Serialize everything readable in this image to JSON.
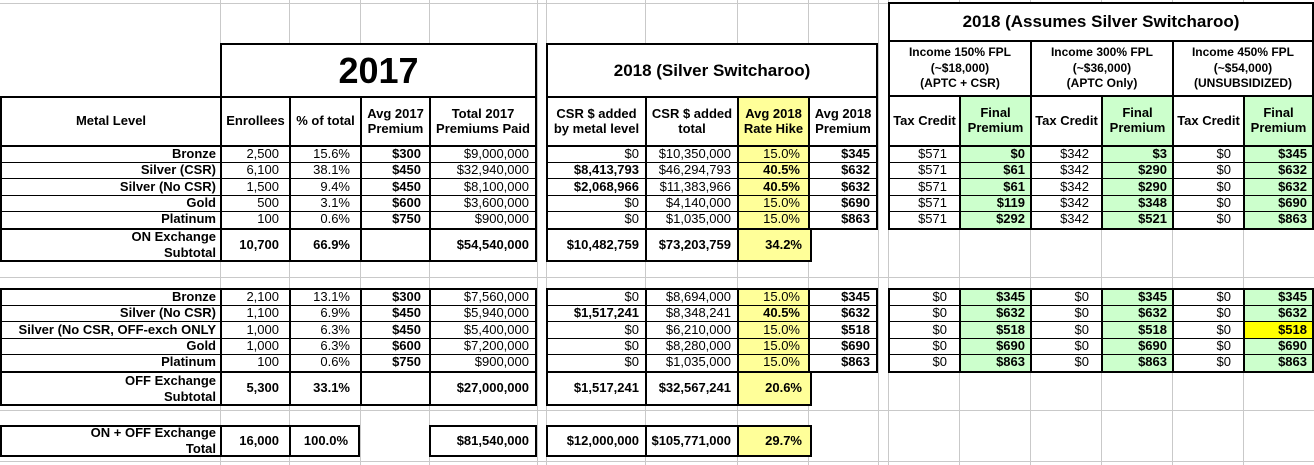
{
  "titles": {
    "y2017": "2017",
    "switcharoo": "2018 (Silver Switcharoo)",
    "assumes": "2018 (Assumes Silver Switcharoo)"
  },
  "headers": {
    "left": [
      "Metal Level",
      "Enrollees",
      "% of total",
      "Avg 2017 Premium",
      "Total 2017 Premiums Paid"
    ],
    "mid": [
      "CSR $ added by metal level",
      "CSR $ added total",
      "Avg 2018 Rate Hike",
      "Avg 2018 Premium"
    ],
    "income": [
      "Income 150% FPL\n(~$18,000)\n(APTC + CSR)",
      "Income 300% FPL\n(~$36,000)\n(APTC Only)",
      "Income 450% FPL\n(~$54,000)\n(UNSUBSIDIZED)"
    ],
    "tax_credit": "Tax Credit",
    "final_premium": "Final Premium"
  },
  "colors": {
    "rate_hike_highlight": "#FFFF99",
    "final_premium_highlight": "#CCFFCC",
    "special_cell_highlight": "#FFFF00"
  },
  "on_rows": [
    {
      "label": "Bronze",
      "enrollees": "2,500",
      "pct": "15.6%",
      "avg2017": "$300",
      "total2017": "$9,000,000",
      "csr_added": "$0",
      "csr_total": "$10,350,000",
      "hike": "15.0%",
      "avg2018": "$345",
      "tc150": "$571",
      "fp150": "$0",
      "tc300": "$342",
      "fp300": "$3",
      "tc450": "$0",
      "fp450": "$345"
    },
    {
      "label": "Silver (CSR)",
      "enrollees": "6,100",
      "pct": "38.1%",
      "avg2017": "$450",
      "total2017": "$32,940,000",
      "csr_added": "$8,413,793",
      "csr_added_bold": true,
      "csr_total": "$46,294,793",
      "hike": "40.5%",
      "hike_bold": true,
      "avg2018": "$632",
      "tc150": "$571",
      "fp150": "$61",
      "tc300": "$342",
      "fp300": "$290",
      "tc450": "$0",
      "fp450": "$632"
    },
    {
      "label": "Silver (No CSR)",
      "enrollees": "1,500",
      "pct": "9.4%",
      "avg2017": "$450",
      "total2017": "$8,100,000",
      "csr_added": "$2,068,966",
      "csr_added_bold": true,
      "csr_total": "$11,383,966",
      "hike": "40.5%",
      "hike_bold": true,
      "avg2018": "$632",
      "tc150": "$571",
      "fp150": "$61",
      "tc300": "$342",
      "fp300": "$290",
      "tc450": "$0",
      "fp450": "$632"
    },
    {
      "label": "Gold",
      "enrollees": "500",
      "pct": "3.1%",
      "avg2017": "$600",
      "total2017": "$3,600,000",
      "csr_added": "$0",
      "csr_total": "$4,140,000",
      "hike": "15.0%",
      "avg2018": "$690",
      "tc150": "$571",
      "fp150": "$119",
      "tc300": "$342",
      "fp300": "$348",
      "tc450": "$0",
      "fp450": "$690"
    },
    {
      "label": "Platinum",
      "enrollees": "100",
      "pct": "0.6%",
      "avg2017": "$750",
      "total2017": "$900,000",
      "csr_added": "$0",
      "csr_total": "$1,035,000",
      "hike": "15.0%",
      "avg2018": "$863",
      "tc150": "$571",
      "fp150": "$292",
      "tc300": "$342",
      "fp300": "$521",
      "tc450": "$0",
      "fp450": "$863"
    }
  ],
  "on_subtotal": {
    "label": "ON Exchange\nSubtotal",
    "enrollees": "10,700",
    "pct": "66.9%",
    "avg2017": "",
    "total2017": "$54,540,000",
    "csr_added": "$10,482,759",
    "csr_total": "$73,203,759",
    "hike": "34.2%"
  },
  "off_rows": [
    {
      "label": "Bronze",
      "enrollees": "2,100",
      "pct": "13.1%",
      "avg2017": "$300",
      "total2017": "$7,560,000",
      "csr_added": "$0",
      "csr_total": "$8,694,000",
      "hike": "15.0%",
      "avg2018": "$345",
      "tc150": "$0",
      "fp150": "$345",
      "tc300": "$0",
      "fp300": "$345",
      "tc450": "$0",
      "fp450": "$345"
    },
    {
      "label": "Silver (No CSR)",
      "enrollees": "1,100",
      "pct": "6.9%",
      "avg2017": "$450",
      "total2017": "$5,940,000",
      "csr_added": "$1,517,241",
      "csr_added_bold": true,
      "csr_total": "$8,348,241",
      "hike": "40.5%",
      "hike_bold": true,
      "avg2018": "$632",
      "tc150": "$0",
      "fp150": "$632",
      "tc300": "$0",
      "fp300": "$632",
      "tc450": "$0",
      "fp450": "$632"
    },
    {
      "label": "Silver (No CSR, OFF-exch ONLY",
      "enrollees": "1,000",
      "pct": "6.3%",
      "avg2017": "$450",
      "total2017": "$5,400,000",
      "csr_added": "$0",
      "csr_total": "$6,210,000",
      "hike": "15.0%",
      "avg2018": "$518",
      "tc150": "$0",
      "fp150": "$518",
      "tc300": "$0",
      "fp300": "$518",
      "tc450": "$0",
      "fp450": "$518",
      "fp450_highlight": true
    },
    {
      "label": "Gold",
      "enrollees": "1,000",
      "pct": "6.3%",
      "avg2017": "$600",
      "total2017": "$7,200,000",
      "csr_added": "$0",
      "csr_total": "$8,280,000",
      "hike": "15.0%",
      "avg2018": "$690",
      "tc150": "$0",
      "fp150": "$690",
      "tc300": "$0",
      "fp300": "$690",
      "tc450": "$0",
      "fp450": "$690"
    },
    {
      "label": "Platinum",
      "enrollees": "100",
      "pct": "0.6%",
      "avg2017": "$750",
      "total2017": "$900,000",
      "csr_added": "$0",
      "csr_total": "$1,035,000",
      "hike": "15.0%",
      "avg2018": "$863",
      "tc150": "$0",
      "fp150": "$863",
      "tc300": "$0",
      "fp300": "$863",
      "tc450": "$0",
      "fp450": "$863"
    }
  ],
  "off_subtotal": {
    "label": "OFF Exchange\nSubtotal",
    "enrollees": "5,300",
    "pct": "33.1%",
    "avg2017": "",
    "total2017": "$27,000,000",
    "csr_added": "$1,517,241",
    "csr_total": "$32,567,241",
    "hike": "20.6%"
  },
  "grand_total": {
    "label": "ON + OFF Exchange\nTotal",
    "enrollees": "16,000",
    "pct": "100.0%",
    "total2017": "$81,540,000",
    "csr_added": "$12,000,000",
    "csr_total": "$105,771,000",
    "hike": "29.7%"
  }
}
